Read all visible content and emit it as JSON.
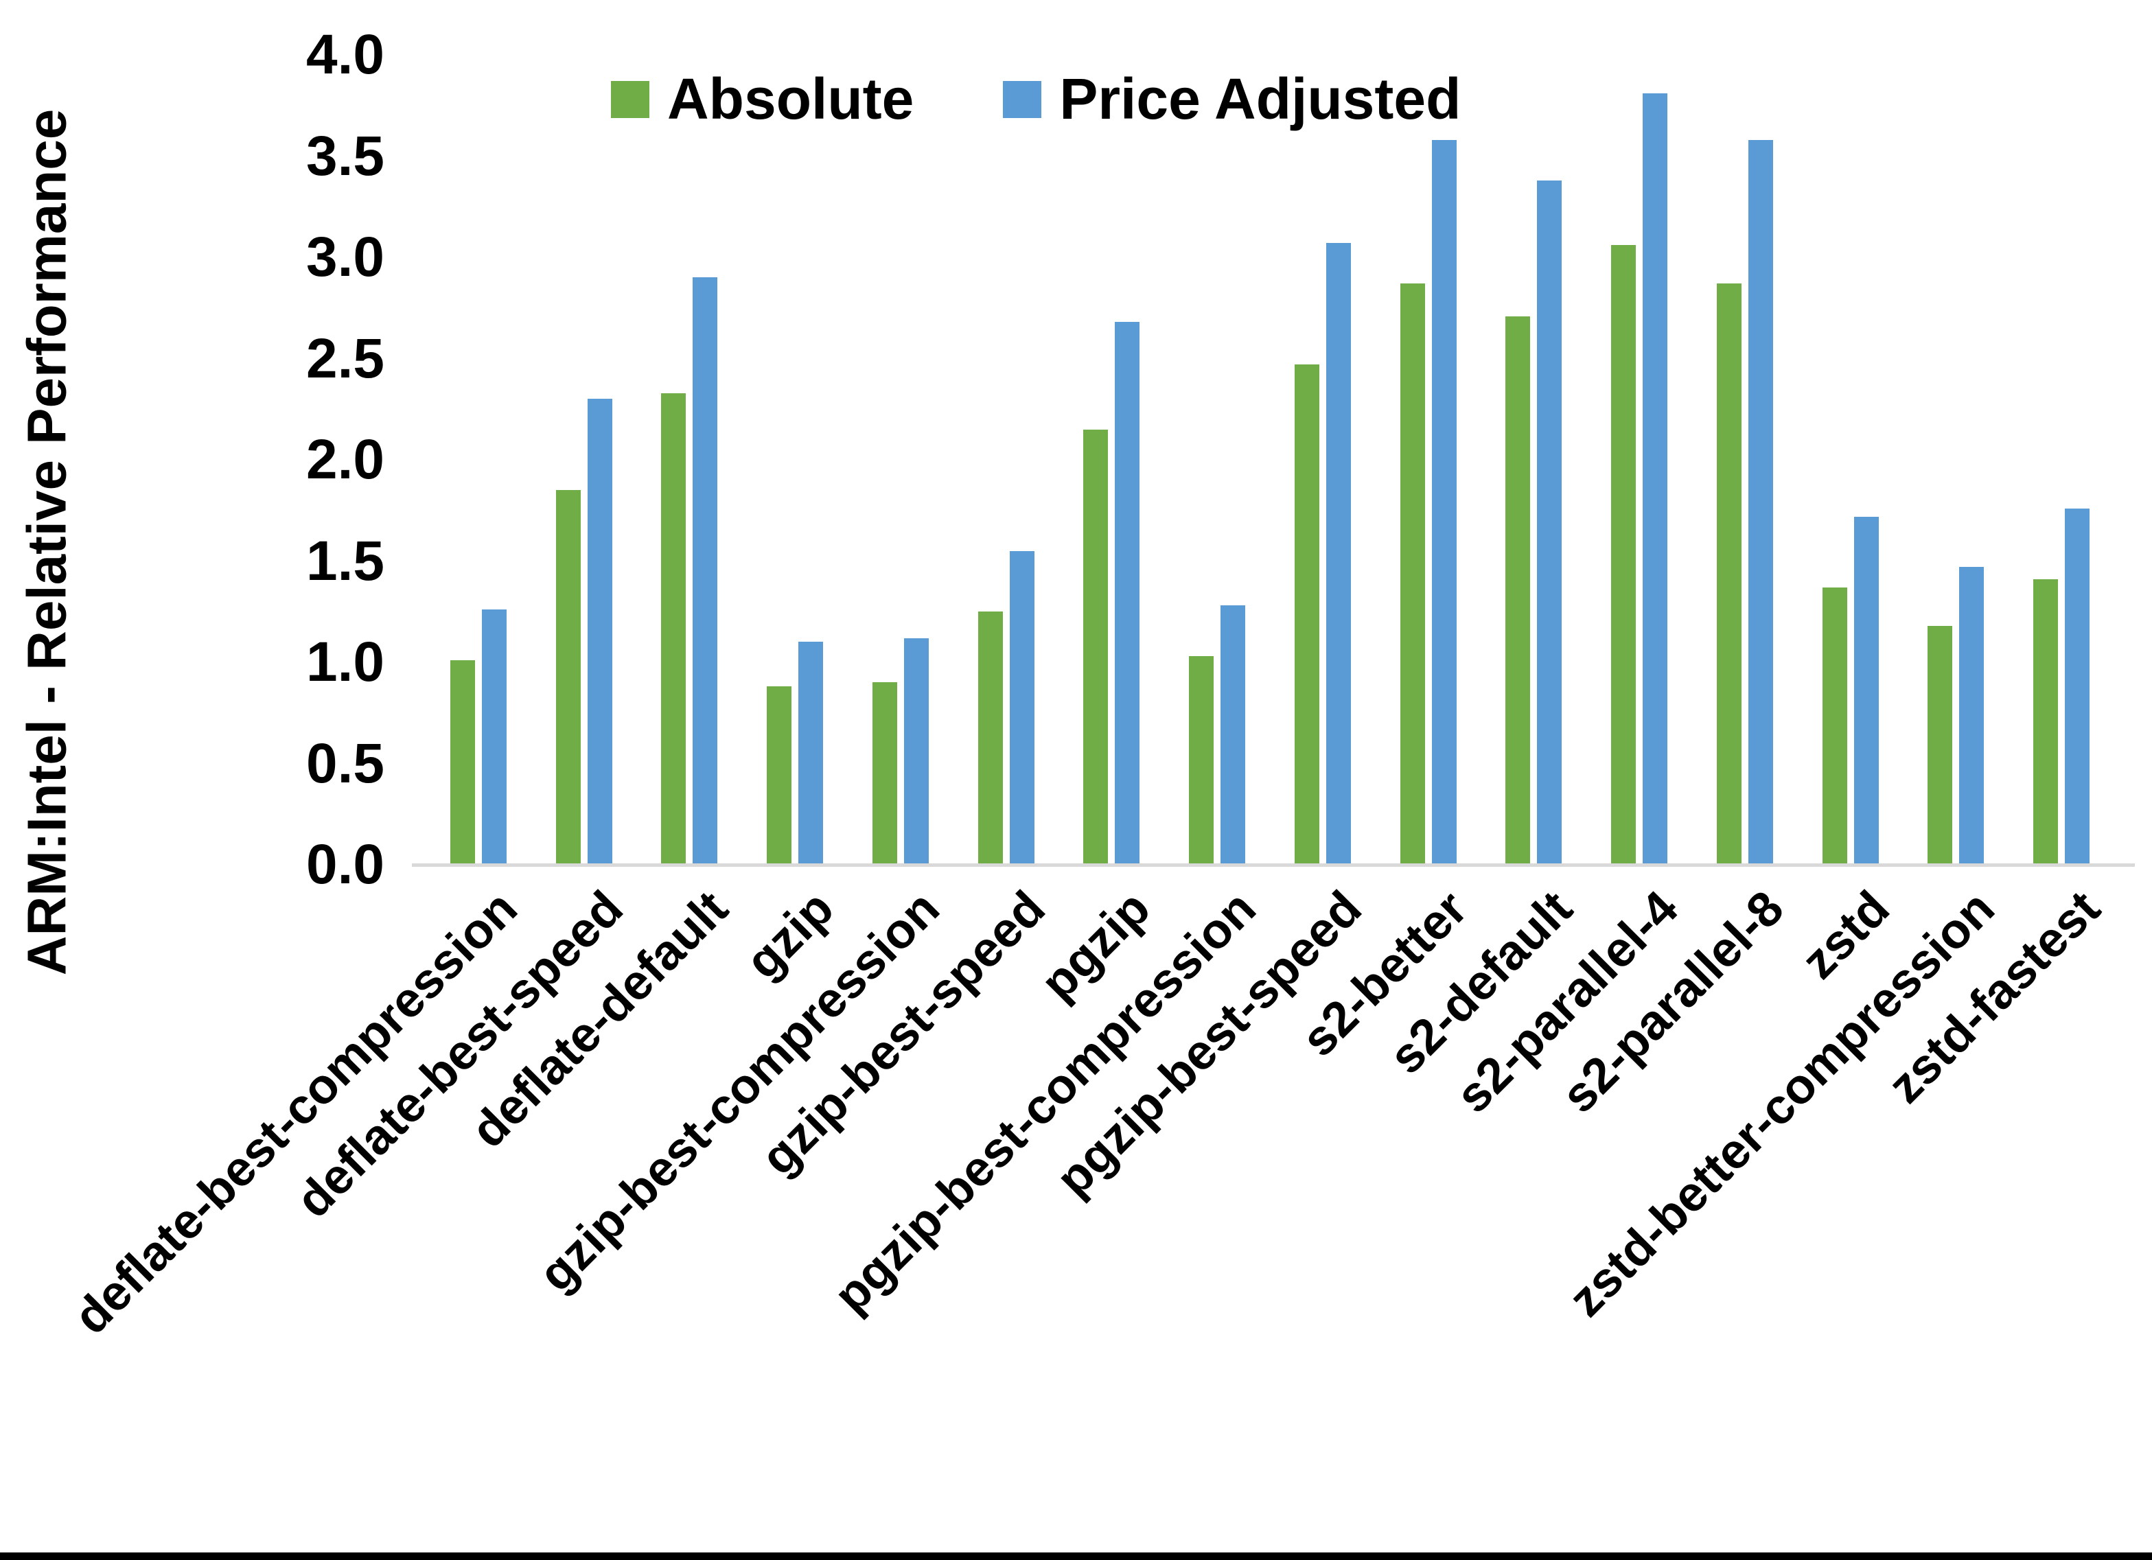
{
  "colors": {
    "background": "#FFFFFF",
    "absolute_green": "#70AD47",
    "price_adjusted_blue": "#5B9BD5",
    "axis_line": "#D9D9D9",
    "text": "#000000",
    "bottom_border": "#000000"
  },
  "chart_data": {
    "type": "bar",
    "title": "",
    "xlabel": "",
    "ylabel": "ARM:Intel - Relative Performance",
    "ylim": [
      0.0,
      4.0
    ],
    "ytick_step": 0.5,
    "ytick_labels": [
      "4.0",
      "3.5",
      "3.0",
      "2.5",
      "2.0",
      "1.5",
      "1.0",
      "0.5",
      "0.0"
    ],
    "grid": false,
    "legend_position": "top-center",
    "categories": [
      "deflate-best-compression",
      "deflate-best-speed",
      "deflate-default",
      "gzip",
      "gzip-best-compression",
      "gzip-best-speed",
      "pgzip",
      "pgzip-best-compression",
      "pgzip-best-speed",
      "s2-better",
      "s2-default",
      "s2-parallel-4",
      "s2-parallel-8",
      "zstd",
      "zstd-better-compression",
      "zstd-fastest"
    ],
    "series": [
      {
        "name": "Absolute",
        "color": "#70AD47",
        "values": [
          1.01,
          1.85,
          2.33,
          0.88,
          0.9,
          1.25,
          2.15,
          1.03,
          2.47,
          2.87,
          2.71,
          3.06,
          2.87,
          1.37,
          1.18,
          1.41
        ]
      },
      {
        "name": "Price Adjusted",
        "color": "#5B9BD5",
        "values": [
          1.26,
          2.3,
          2.9,
          1.1,
          1.12,
          1.55,
          2.68,
          1.28,
          3.07,
          3.58,
          3.38,
          3.81,
          3.58,
          1.72,
          1.47,
          1.76
        ]
      }
    ]
  }
}
